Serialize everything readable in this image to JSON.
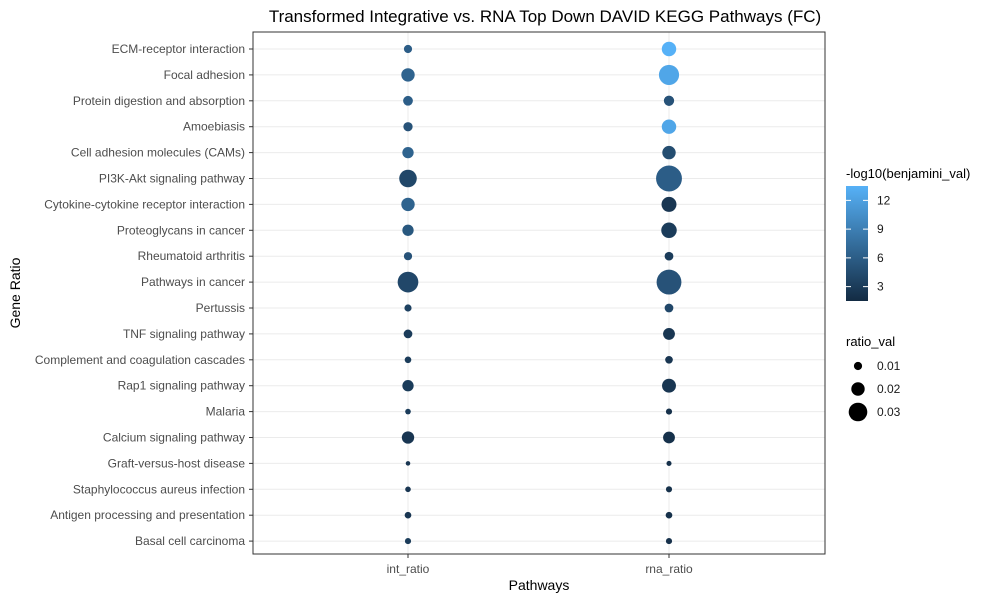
{
  "chart_data": {
    "type": "scatter",
    "title": "Transformed Integrative vs. RNA Top Down DAVID KEGG Pathways (FC)",
    "xlabel": "Pathways",
    "ylabel": "Gene Ratio",
    "categories": [
      "int_ratio",
      "rna_ratio"
    ],
    "pathways": [
      "ECM-receptor interaction",
      "Focal adhesion",
      "Protein digestion and absorption",
      "Amoebiasis",
      "Cell adhesion molecules (CAMs)",
      "PI3K-Akt signaling pathway",
      "Cytokine-cytokine receptor interaction",
      "Proteoglycans in cancer",
      "Rheumatoid arthritis",
      "Pathways in cancer",
      "Pertussis",
      "TNF signaling pathway",
      "Complement and coagulation cascades",
      "Rap1 signaling pathway",
      "Malaria",
      "Calcium signaling pathway",
      "Graft-versus-host disease",
      "Staphylococcus aureus infection",
      "Antigen processing and presentation",
      "Basal cell carcinoma"
    ],
    "series": [
      {
        "name": "int_ratio",
        "ratio_val": [
          0.01,
          0.02,
          0.013,
          0.012,
          0.016,
          0.028,
          0.02,
          0.016,
          0.01,
          0.034,
          0.008,
          0.011,
          0.007,
          0.016,
          0.005,
          0.018,
          0.003,
          0.005,
          0.007,
          0.006
        ],
        "neg_log10_benjamini": [
          6,
          6.5,
          6,
          5,
          6.5,
          4,
          6.5,
          5.5,
          5,
          4,
          3.5,
          3,
          3,
          3,
          3,
          2.5,
          2.5,
          2.5,
          2.5,
          3
        ]
      },
      {
        "name": "rna_ratio",
        "ratio_val": [
          0.022,
          0.033,
          0.014,
          0.022,
          0.02,
          0.044,
          0.023,
          0.024,
          0.011,
          0.042,
          0.011,
          0.017,
          0.009,
          0.021,
          0.006,
          0.017,
          0.004,
          0.006,
          0.007,
          0.006
        ],
        "neg_log10_benjamini": [
          13.5,
          12.5,
          5,
          12.5,
          4.5,
          6,
          2.5,
          3,
          3,
          5,
          4,
          2.5,
          2.5,
          2.5,
          2,
          2,
          2,
          2,
          2,
          2
        ]
      }
    ],
    "color_legend": {
      "title": "-log10(benjamini_val)",
      "ticks": [
        "12",
        "9",
        "6",
        "3"
      ],
      "low_color": "#132b43",
      "high_color": "#56b1f7",
      "range": [
        1.5,
        13.5
      ]
    },
    "size_legend": {
      "title": "ratio_val",
      "ticks": [
        "0.01",
        "0.02",
        "0.03"
      ],
      "values": [
        0.01,
        0.02,
        0.03
      ]
    },
    "grid": true,
    "legend_position": "right"
  }
}
